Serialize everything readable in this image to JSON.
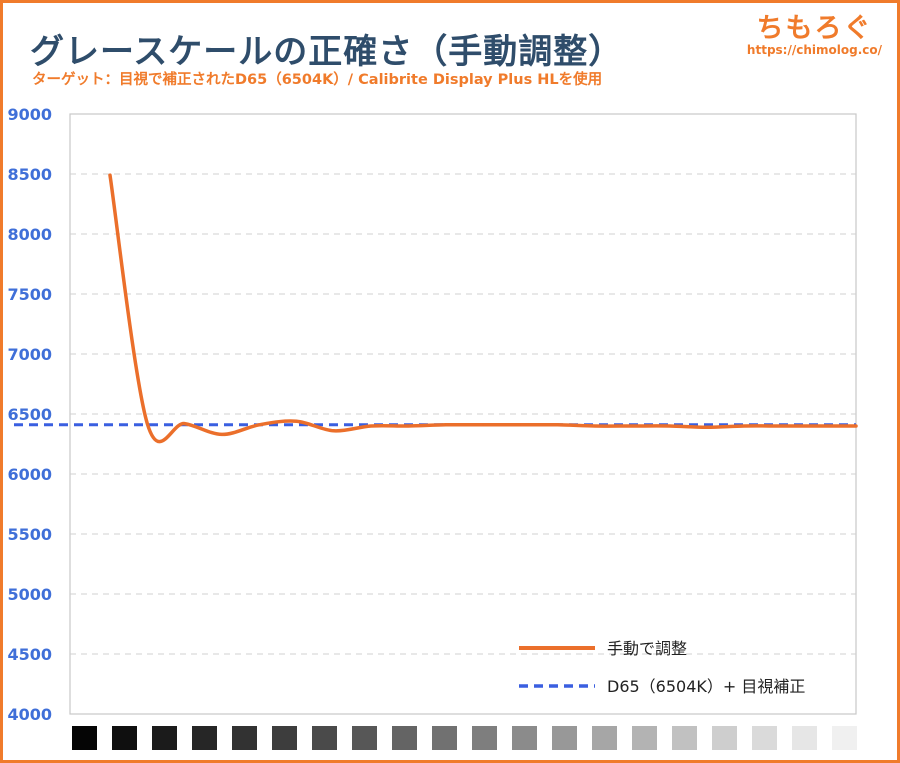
{
  "header": {
    "title": "グレースケールの正確さ（手動調整）",
    "subtitle": "ターゲット：目視で補正されたD65（6504K）/ Calibrite Display Plus HLを使用",
    "logo_name": "ちもろぐ",
    "logo_url": "https://chimolog.co/"
  },
  "colors": {
    "series_manual": "#eb6f2b",
    "series_target": "#3a5fe0",
    "axis_text": "#3f6fd8",
    "title": "#2f4d6b",
    "accent": "#f07b2b"
  },
  "chart_data": {
    "type": "line",
    "ylim": [
      4000,
      9000
    ],
    "yticks": [
      "9000",
      "8500",
      "8000",
      "7500",
      "7000",
      "6500",
      "6000",
      "5500",
      "5000",
      "4500",
      "4000"
    ],
    "grid": true,
    "legend_position": "bottom-right",
    "x": [
      0,
      5,
      10,
      15,
      20,
      25,
      30,
      35,
      40,
      45,
      50,
      55,
      60,
      65,
      70,
      75,
      80,
      85,
      90,
      95,
      100
    ],
    "x_labels_shown": false,
    "x_axis_gray_swatches": [
      "#050505",
      "#0f0f0f",
      "#1b1b1b",
      "#262626",
      "#323232",
      "#3d3d3d",
      "#4a4a4a",
      "#575757",
      "#646464",
      "#717171",
      "#7e7e7e",
      "#8b8b8b",
      "#989898",
      "#a6a6a6",
      "#b3b3b3",
      "#c1c1c1",
      "#cecece",
      "#dadada",
      "#e6e6e6",
      "#f0f0f0"
    ],
    "series": [
      {
        "name": "手動で調整",
        "values": [
          8490,
          6420,
          6420,
          6330,
          6410,
          6440,
          6360,
          6400,
          6400,
          6410,
          6410,
          6410,
          6410,
          6400,
          6400,
          6400,
          6390,
          6400,
          6400,
          6400,
          6400
        ],
        "style": "solid"
      },
      {
        "name": "D65（6504K）+ 目視補正",
        "values": [
          6410,
          6410,
          6410,
          6410,
          6410,
          6410,
          6410,
          6410,
          6410,
          6410,
          6410,
          6410,
          6410,
          6410,
          6410,
          6410,
          6410,
          6410,
          6410,
          6410,
          6410
        ],
        "style": "dashed"
      }
    ]
  }
}
